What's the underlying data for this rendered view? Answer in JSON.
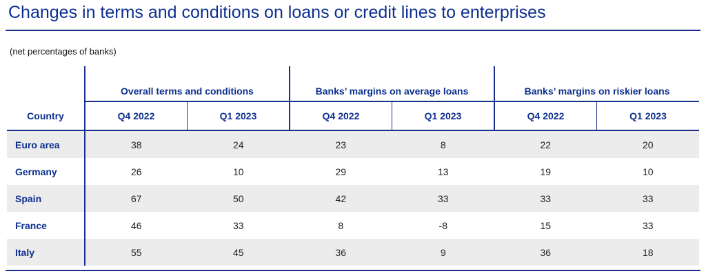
{
  "title": "Changes in terms and conditions on loans or credit lines to enterprises",
  "subtitle": "(net percentages of banks)",
  "chart_data": {
    "type": "table",
    "row_header": "Country",
    "groups": [
      {
        "label": "Overall terms and conditions",
        "periods": [
          "Q4 2022",
          "Q1 2023"
        ]
      },
      {
        "label": "Banks’ margins on average loans",
        "periods": [
          "Q4 2022",
          "Q1 2023"
        ]
      },
      {
        "label": "Banks’ margins on riskier loans",
        "periods": [
          "Q4 2022",
          "Q1 2023"
        ]
      }
    ],
    "rows": [
      {
        "country": "Euro area",
        "values": [
          "38",
          "24",
          "23",
          "8",
          "22",
          "20"
        ]
      },
      {
        "country": "Germany",
        "values": [
          "26",
          "10",
          "29",
          "13",
          "19",
          "10"
        ]
      },
      {
        "country": "Spain",
        "values": [
          "67",
          "50",
          "42",
          "33",
          "33",
          "33"
        ]
      },
      {
        "country": "France",
        "values": [
          "46",
          "33",
          "8",
          "-8",
          "15",
          "33"
        ]
      },
      {
        "country": "Italy",
        "values": [
          "55",
          "45",
          "36",
          "9",
          "36",
          "18"
        ]
      }
    ]
  }
}
